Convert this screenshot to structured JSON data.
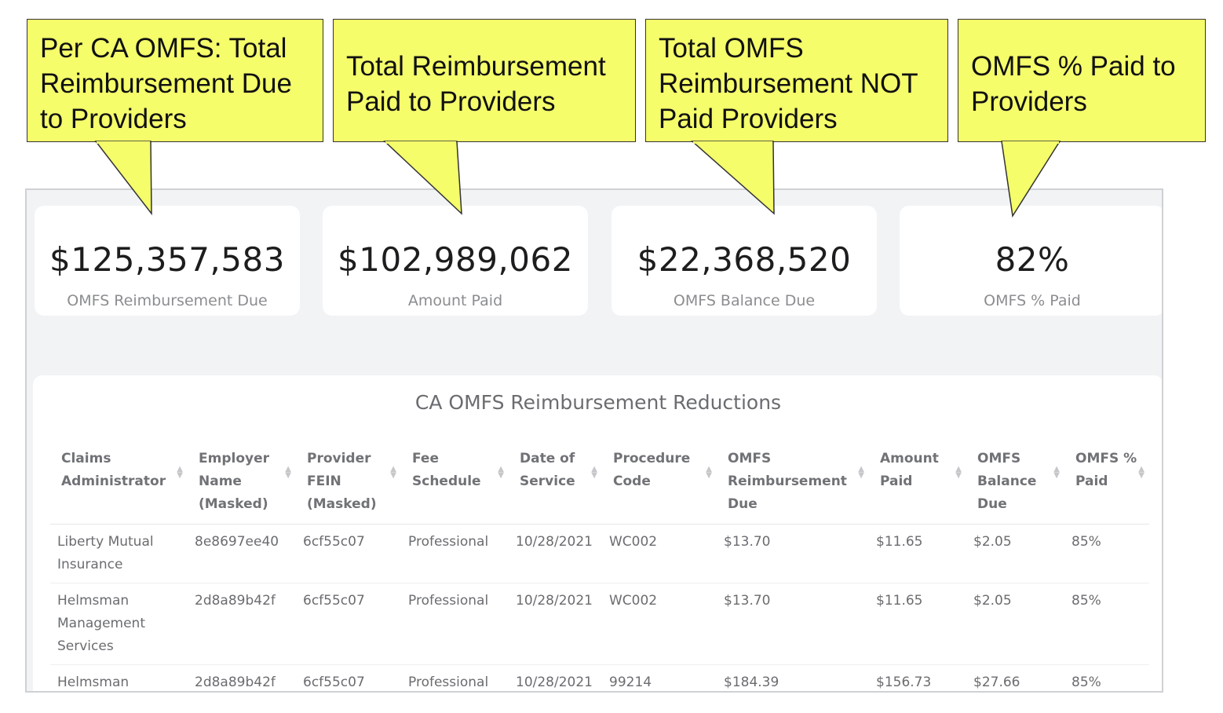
{
  "callouts": [
    "Per CA OMFS: Total Reimbursement Due to Providers",
    "Total Reimbursement Paid to Providers",
    "Total OMFS Reimbursement NOT Paid Providers",
    "OMFS % Paid to Providers"
  ],
  "kpis": [
    {
      "value": "$125,357,583",
      "label": "OMFS Reimbursement Due"
    },
    {
      "value": "$102,989,062",
      "label": "Amount Paid"
    },
    {
      "value": "$22,368,520",
      "label": "OMFS Balance Due"
    },
    {
      "value": "82%",
      "label": "OMFS % Paid"
    }
  ],
  "table": {
    "title": "CA OMFS Reimbursement Reductions",
    "columns": [
      "Claims Administrator",
      "Employer Name (Masked)",
      "Provider FEIN (Masked)",
      "Fee Schedule",
      "Date of Service",
      "Procedure Code",
      "OMFS Reimbursement Due",
      "Amount Paid",
      "OMFS Balance Due",
      "OMFS % Paid"
    ],
    "rows": [
      [
        "Liberty Mutual Insurance",
        "8e8697ee40",
        "6cf55c07",
        "Professional",
        "10/28/2021",
        "WC002",
        "$13.70",
        "$11.65",
        "$2.05",
        "85%"
      ],
      [
        "Helmsman Management Services",
        "2d8a89b42f",
        "6cf55c07",
        "Professional",
        "10/28/2021",
        "WC002",
        "$13.70",
        "$11.65",
        "$2.05",
        "85%"
      ],
      [
        "Helmsman",
        "2d8a89b42f",
        "6cf55c07",
        "Professional",
        "10/28/2021",
        "99214",
        "$184.39",
        "$156.73",
        "$27.66",
        "85%"
      ]
    ]
  }
}
